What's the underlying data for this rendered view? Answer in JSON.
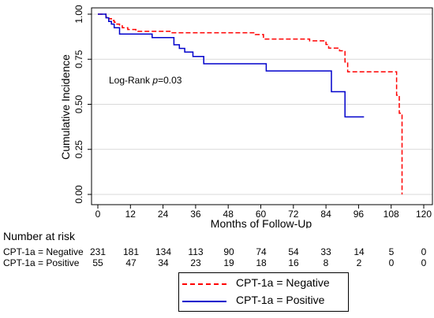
{
  "chart_data": {
    "type": "line",
    "ylabel": "Cumulative Incidence",
    "xlabel": "Months of Follow-Up",
    "xlim": [
      0,
      120
    ],
    "ylim": [
      0,
      1
    ],
    "xticks": [
      "0",
      "12",
      "24",
      "36",
      "48",
      "60",
      "72",
      "84",
      "96",
      "108",
      "120"
    ],
    "yticks": [
      "0.00",
      "0.25",
      "0.50",
      "0.75",
      "1.00"
    ],
    "annotation": {
      "prefix": "Log-Rank ",
      "p_symbol": "p",
      "value": "=0.03"
    },
    "series": [
      {
        "name": "CPT-1a = Negative",
        "color": "#ff0000",
        "style": "dashed",
        "points": [
          [
            0,
            1.0
          ],
          [
            3,
            1.0
          ],
          [
            3,
            0.985
          ],
          [
            4,
            0.985
          ],
          [
            4,
            0.975
          ],
          [
            5,
            0.975
          ],
          [
            5,
            0.965
          ],
          [
            6,
            0.965
          ],
          [
            6,
            0.955
          ],
          [
            7,
            0.955
          ],
          [
            7,
            0.945
          ],
          [
            8,
            0.945
          ],
          [
            8,
            0.935
          ],
          [
            9,
            0.935
          ],
          [
            9,
            0.925
          ],
          [
            11,
            0.925
          ],
          [
            11,
            0.915
          ],
          [
            14,
            0.915
          ],
          [
            14,
            0.905
          ],
          [
            27,
            0.905
          ],
          [
            27,
            0.897
          ],
          [
            58,
            0.897
          ],
          [
            58,
            0.887
          ],
          [
            61,
            0.887
          ],
          [
            61,
            0.862
          ],
          [
            78,
            0.862
          ],
          [
            78,
            0.852
          ],
          [
            84,
            0.852
          ],
          [
            84,
            0.832
          ],
          [
            85,
            0.832
          ],
          [
            85,
            0.812
          ],
          [
            89,
            0.812
          ],
          [
            89,
            0.797
          ],
          [
            91,
            0.797
          ],
          [
            91,
            0.735
          ],
          [
            92,
            0.735
          ],
          [
            92,
            0.68
          ],
          [
            110,
            0.68
          ],
          [
            110,
            0.55
          ],
          [
            111,
            0.55
          ],
          [
            111,
            0.45
          ],
          [
            112,
            0.45
          ],
          [
            112,
            0.0
          ]
        ]
      },
      {
        "name": "CPT-1a = Positive",
        "color": "#0000cc",
        "style": "solid",
        "points": [
          [
            0,
            1.0
          ],
          [
            3,
            1.0
          ],
          [
            3,
            0.98
          ],
          [
            4,
            0.98
          ],
          [
            4,
            0.96
          ],
          [
            5,
            0.96
          ],
          [
            5,
            0.945
          ],
          [
            6,
            0.945
          ],
          [
            6,
            0.925
          ],
          [
            8,
            0.925
          ],
          [
            8,
            0.89
          ],
          [
            20,
            0.89
          ],
          [
            20,
            0.87
          ],
          [
            28,
            0.87
          ],
          [
            28,
            0.83
          ],
          [
            30,
            0.83
          ],
          [
            30,
            0.81
          ],
          [
            32,
            0.81
          ],
          [
            32,
            0.79
          ],
          [
            35,
            0.79
          ],
          [
            35,
            0.765
          ],
          [
            39,
            0.765
          ],
          [
            39,
            0.725
          ],
          [
            62,
            0.725
          ],
          [
            62,
            0.685
          ],
          [
            86,
            0.685
          ],
          [
            86,
            0.57
          ],
          [
            91,
            0.57
          ],
          [
            91,
            0.43
          ],
          [
            98,
            0.43
          ]
        ]
      }
    ],
    "legend_position": "bottom-right"
  },
  "risk_table": {
    "title": "Number at risk",
    "times": [
      0,
      12,
      24,
      36,
      48,
      60,
      72,
      84,
      96,
      108,
      120
    ],
    "rows": [
      {
        "label": "CPT-1a = Negative",
        "values": [
          "231",
          "181",
          "134",
          "113",
          "90",
          "74",
          "54",
          "33",
          "14",
          "5",
          "0"
        ]
      },
      {
        "label": "CPT-1a = Positive",
        "values": [
          "55",
          "47",
          "34",
          "23",
          "19",
          "18",
          "16",
          "8",
          "2",
          "0",
          "0"
        ]
      }
    ]
  }
}
